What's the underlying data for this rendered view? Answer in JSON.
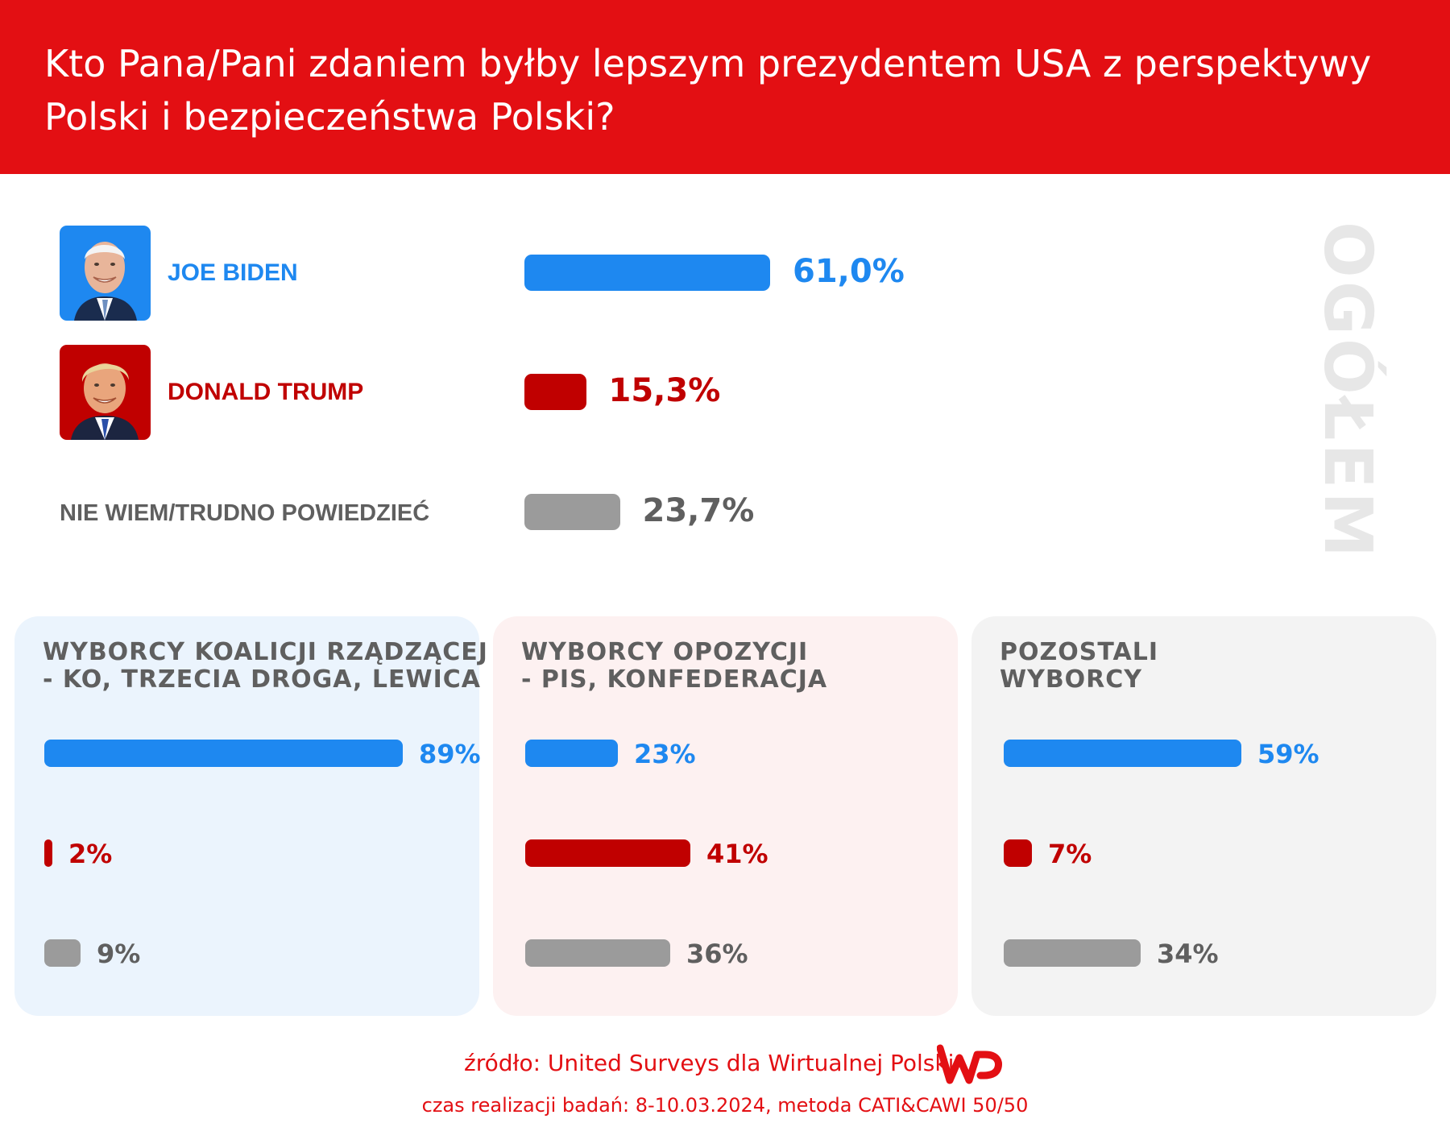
{
  "title_line1": "Kto Pana/Pani zdaniem byłby lepszym prezydentem USA z perspektywy",
  "title_line2": "Polski i bezpieczeństwa Polski?",
  "section_label": "OGÓŁEM",
  "colors": {
    "header_red": "#e30f13",
    "biden_blue": "#1e88f0",
    "trump_red": "#c00000",
    "neutral_gray": "#9b9b9b",
    "panel_blue_bg": "#ebf4fd",
    "panel_pink_bg": "#fdf1f1",
    "panel_gray_bg": "#f3f3f3"
  },
  "chart_data": [
    {
      "type": "bar",
      "title": "OGÓŁEM",
      "categories": [
        "JOE BIDEN",
        "DONALD TRUMP",
        "NIE WIEM/TRUDNO POWIEDZIEĆ"
      ],
      "values": [
        61.0,
        15.3,
        23.7
      ],
      "labels": [
        "61,0%",
        "15,3%",
        "23,7%"
      ],
      "unit": "%"
    },
    {
      "type": "bar",
      "title": "WYBORCY KOALICJI RZĄDZĄCEJ - KO, TRZECIA DROGA, LEWICA",
      "categories": [
        "JOE BIDEN",
        "DONALD TRUMP",
        "NIE WIEM/TRUDNO POWIEDZIEĆ"
      ],
      "values": [
        89,
        2,
        9
      ],
      "labels": [
        "89%",
        "2%",
        "9%"
      ],
      "unit": "%"
    },
    {
      "type": "bar",
      "title": "WYBORCY OPOZYCJI - PIS, KONFEDERACJA",
      "categories": [
        "JOE BIDEN",
        "DONALD TRUMP",
        "NIE WIEM/TRUDNO POWIEDZIEĆ"
      ],
      "values": [
        23,
        41,
        36
      ],
      "labels": [
        "23%",
        "41%",
        "36%"
      ],
      "unit": "%"
    },
    {
      "type": "bar",
      "title": "POZOSTALI WYBORCY",
      "categories": [
        "JOE BIDEN",
        "DONALD TRUMP",
        "NIE WIEM/TRUDNO POWIEDZIEĆ"
      ],
      "values": [
        59,
        7,
        34
      ],
      "labels": [
        "59%",
        "7%",
        "34%"
      ],
      "unit": "%"
    }
  ],
  "panels": [
    {
      "title_line1": "WYBORCY KOALICJI RZĄDZĄCEJ",
      "title_line2": "- KO, TRZECIA DROGA, LEWICA"
    },
    {
      "title_line1": "WYBORCY OPOZYCJI",
      "title_line2": "- PIS, KONFEDERACJA"
    },
    {
      "title_line1": "POZOSTALI",
      "title_line2": "WYBORCY"
    }
  ],
  "source": "źródło: United Surveys dla Wirtualnej Polski",
  "method": "czas realizacji badań: 8-10.03.2024, metoda CATI&CAWI 50/50",
  "logo_text": "WP"
}
